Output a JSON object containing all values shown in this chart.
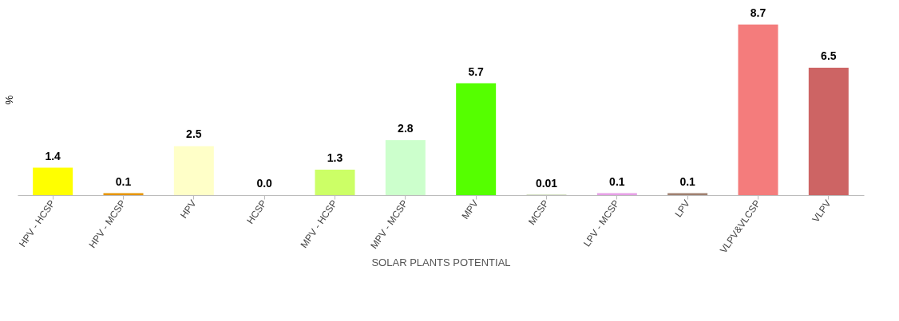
{
  "chart_data": {
    "type": "bar",
    "ylabel": "%",
    "xlabel": "SOLAR PLANTS POTENTIAL",
    "categories": [
      "HPV - HCSP",
      "HPV - MCSP",
      "HPV",
      "HCSP",
      "MPV - HCSP",
      "MPV - MCSP",
      "MPV",
      "MCSP",
      "LPV - MCSP",
      "LPV",
      "VLPV&VLCSP",
      "VLPV"
    ],
    "values": [
      1.4,
      0.1,
      2.5,
      0.0,
      1.3,
      2.8,
      5.7,
      0.01,
      0.1,
      0.1,
      8.7,
      6.5
    ],
    "value_labels": [
      "1.4",
      "0.1",
      "2.5",
      "0.0",
      "1.3",
      "2.8",
      "5.7",
      "0.01",
      "0.1",
      "0.1",
      "8.7",
      "6.5"
    ],
    "colors": [
      "#ffff00",
      "#e69500",
      "#ffffc8",
      "#c8b48c",
      "#ccff66",
      "#ccffcc",
      "#55ff00",
      "#4a7a00",
      "#e6a0e6",
      "#a08070",
      "#f47c7c",
      "#cd6464"
    ],
    "grid": false
  }
}
